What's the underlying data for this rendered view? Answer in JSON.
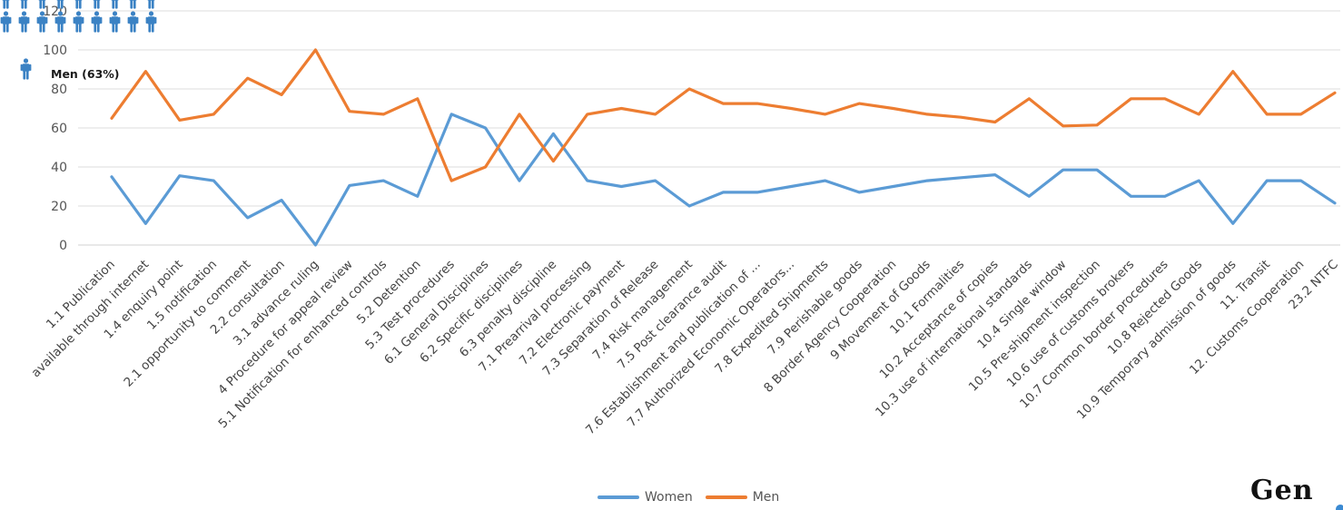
{
  "chart_data": {
    "type": "line",
    "categories": [
      "1.1 Publication",
      "available through internet",
      "1.4 enquiry point",
      "1.5 notification",
      "2.1 opportunity to comment",
      "2.2 consultation",
      "3.1 advance ruling",
      "4 Procedure for appeal review",
      "5.1 Notification for enhanced controls",
      "5.2 Detention",
      "5.3 Test procedures",
      "6.1 General Disciplines",
      "6.2 Specific disciplines",
      "6.3 penalty discipline",
      "7.1 Prearrival processing",
      "7.2 Electronic payment",
      "7.3 Separation of Release",
      "7.4 Risk management",
      "7.5 Post clearance audit",
      "7.6 Establishment and publication of ...",
      "7.7 Authorized Economic Operators...",
      "7.8 Expedited Shipments",
      "7.9 Perishable goods",
      "8 Border Agency Cooperation",
      "9 Movement of Goods",
      "10.1 Formalities",
      "10.2 Acceptance of copies",
      "10.3 use of international standards",
      "10.4 Single window",
      "10.5 Pre-shipment inspection",
      "10.6 use of customs brokers",
      "10.7 Common border procedures",
      "10.8 Rejected Goods",
      "10.9 Temporary admission of goods",
      "11. Transit",
      "12. Customs Cooperation",
      "23.2 NTFC"
    ],
    "series": [
      {
        "name": "Women",
        "color": "#5b9bd5",
        "values": [
          35,
          11,
          35.5,
          33,
          14,
          23,
          0,
          30.5,
          33,
          25,
          67,
          60,
          33,
          57,
          33,
          30,
          33,
          20,
          27,
          27,
          30,
          33,
          27,
          30,
          33,
          34.5,
          36,
          25,
          38.5,
          38.5,
          25,
          25,
          33,
          11,
          33,
          33,
          21.5
        ]
      },
      {
        "name": "Men",
        "color": "#ed7d31",
        "values": [
          65,
          89,
          64,
          67,
          85.5,
          77,
          100,
          68.5,
          67,
          75,
          33,
          40,
          67,
          43,
          67,
          70,
          67,
          80,
          72.5,
          72.5,
          70,
          67,
          72.5,
          70,
          67,
          65.5,
          63,
          75,
          61,
          61.5,
          75,
          75,
          67,
          89,
          67,
          67,
          78
        ]
      }
    ],
    "ylim": [
      0,
      120
    ],
    "yticks": [
      0,
      20,
      40,
      60,
      80,
      100,
      120
    ],
    "grid": true,
    "legend_position": "bottom-center"
  },
  "overlay": {
    "men_label": "Men (63%)",
    "icon_color": "#3b82c4",
    "logo_text": "Gen"
  }
}
